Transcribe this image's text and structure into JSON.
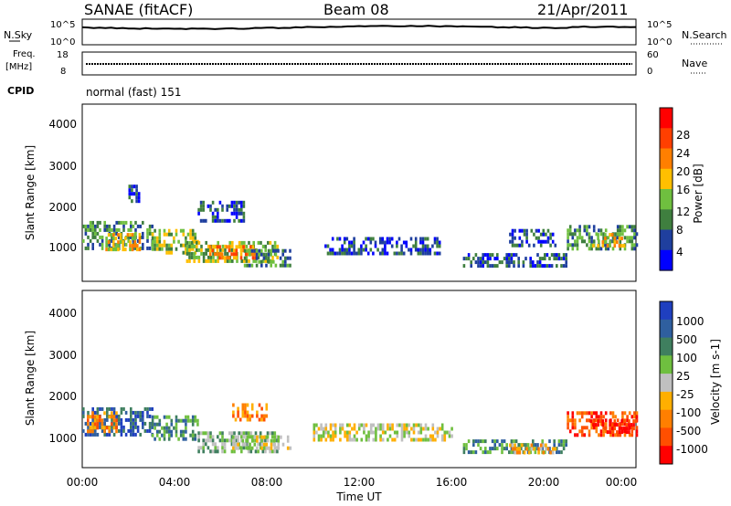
{
  "header": {
    "station": "SANAE (fitACF)",
    "beam": "Beam 08",
    "date": "21/Apr/2011"
  },
  "params": {
    "nsky_label": "N.Sky",
    "nsearch_label": "N.Search",
    "nsky_ticks": [
      "10^5",
      "10^0"
    ],
    "nsearch_ticks": [
      "10^5",
      "10^0"
    ],
    "freq_label": "Freq.",
    "freq_unit": "[MHz]",
    "freq_ticks": [
      "18",
      "8"
    ],
    "nave_label": "Nave",
    "nave_ticks": [
      "60",
      "0"
    ],
    "cpid_label": "CPID",
    "cpid_value": "normal (fast) 151"
  },
  "colors": {
    "power_scale": [
      "#0000ff",
      "#1f3f9e",
      "#3f7f3f",
      "#6fbf3f",
      "#ffbf00",
      "#ff7f00",
      "#ff3f00",
      "#ff0000"
    ],
    "velocity_scale": [
      "#1f3fbf",
      "#2f5f9f",
      "#3f7f5f",
      "#6fbf3f",
      "#c0c0c0",
      "#ffaf00",
      "#ff7f00",
      "#ff4f00",
      "#ff0000"
    ],
    "nsky": "#000000"
  },
  "chart_data": [
    {
      "type": "heatmap",
      "name": "power",
      "xlabel": "",
      "ylabel": "Slant Range [km]",
      "yticks": [
        "1000",
        "2000",
        "3000",
        "4000"
      ],
      "ylim": [
        200,
        4600
      ],
      "xlim_hours": [
        0,
        24
      ],
      "colorbar": {
        "label": "Power [dB]",
        "ticks": [
          "4",
          "8",
          "12",
          "16",
          "20",
          "24",
          "28"
        ],
        "range": [
          0,
          30
        ]
      },
      "scatter_regions": [
        {
          "t": [
            0.0,
            3.0
          ],
          "r": [
            1000,
            1700
          ],
          "v": 10
        },
        {
          "t": [
            1.0,
            2.5
          ],
          "r": [
            1000,
            1400
          ],
          "v": 18
        },
        {
          "t": [
            3.0,
            5.0
          ],
          "r": [
            900,
            1500
          ],
          "v": 14
        },
        {
          "t": [
            4.5,
            8.5
          ],
          "r": [
            700,
            1200
          ],
          "v": 12
        },
        {
          "t": [
            5.5,
            7.5
          ],
          "r": [
            800,
            1100
          ],
          "v": 20
        },
        {
          "t": [
            7.0,
            9.0
          ],
          "r": [
            600,
            1000
          ],
          "v": 9
        },
        {
          "t": [
            5.0,
            7.0
          ],
          "r": [
            1700,
            2200
          ],
          "v": 6
        },
        {
          "t": [
            2.0,
            2.5
          ],
          "r": [
            2200,
            2600
          ],
          "v": 6
        },
        {
          "t": [
            10.5,
            15.5
          ],
          "r": [
            900,
            1300
          ],
          "v": 6
        },
        {
          "t": [
            16.5,
            21.0
          ],
          "r": [
            600,
            900
          ],
          "v": 5
        },
        {
          "t": [
            18.5,
            20.5
          ],
          "r": [
            1100,
            1500
          ],
          "v": 5
        },
        {
          "t": [
            21.0,
            24.0
          ],
          "r": [
            1000,
            1600
          ],
          "v": 10
        },
        {
          "t": [
            22.0,
            23.5
          ],
          "r": [
            1100,
            1400
          ],
          "v": 16
        }
      ]
    },
    {
      "type": "heatmap",
      "name": "velocity",
      "xlabel": "Time UT",
      "ylabel": "Slant Range [km]",
      "yticks": [
        "1000",
        "2000",
        "3000",
        "4000"
      ],
      "ylim": [
        200,
        4600
      ],
      "xlim_hours": [
        0,
        24
      ],
      "xticks": [
        "00:00",
        "04:00",
        "08:00",
        "12:00",
        "16:00",
        "20:00",
        "00:00"
      ],
      "colorbar": {
        "label": "Velocity [m s-1]",
        "ticks": [
          "1000",
          "500",
          "100",
          "25",
          "-25",
          "-100",
          "-500",
          "-1000"
        ]
      },
      "scatter_regions": [
        {
          "t": [
            0.0,
            3.0
          ],
          "r": [
            1000,
            1700
          ],
          "v": 1
        },
        {
          "t": [
            0.2,
            1.5
          ],
          "r": [
            1100,
            1600
          ],
          "v": 6
        },
        {
          "t": [
            3.0,
            5.0
          ],
          "r": [
            900,
            1500
          ],
          "v": 2
        },
        {
          "t": [
            5.0,
            8.5
          ],
          "r": [
            600,
            1100
          ],
          "v": 3
        },
        {
          "t": [
            6.5,
            9.0
          ],
          "r": [
            700,
            1000
          ],
          "v": 4
        },
        {
          "t": [
            6.5,
            8.0
          ],
          "r": [
            1400,
            1800
          ],
          "v": 6
        },
        {
          "t": [
            10.0,
            16.0
          ],
          "r": [
            900,
            1300
          ],
          "v": 4
        },
        {
          "t": [
            16.5,
            21.0
          ],
          "r": [
            600,
            900
          ],
          "v": 2
        },
        {
          "t": [
            18.5,
            20.5
          ],
          "r": [
            600,
            800
          ],
          "v": 5
        },
        {
          "t": [
            21.0,
            24.0
          ],
          "r": [
            1000,
            1600
          ],
          "v": 7
        },
        {
          "t": [
            22.0,
            24.0
          ],
          "r": [
            1100,
            1400
          ],
          "v": 8
        }
      ]
    }
  ]
}
